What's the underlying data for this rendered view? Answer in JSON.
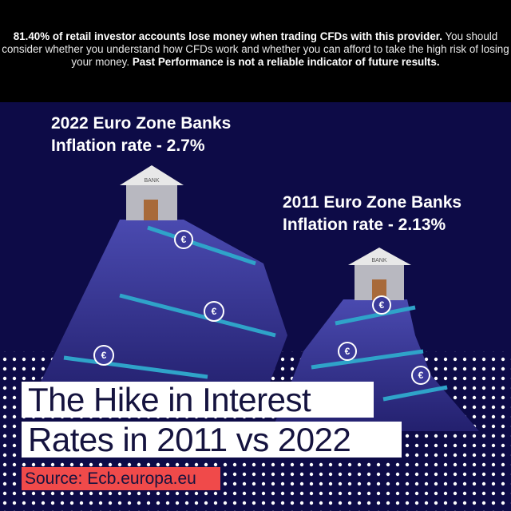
{
  "disclaimer": {
    "bold_1": "81.40% of retail investor accounts lose money when trading CFDs with this provider.",
    "normal": " You should consider whether you understand how CFDs work and whether you can afford to take the high risk of losing your money. ",
    "bold_2": "Past Performance is not a reliable indicator of future results."
  },
  "labels": {
    "y2022_line1": "2022 Euro Zone Banks",
    "y2022_line2": "Inflation rate - 2.7%",
    "y2011_line1": "2011 Euro Zone Banks",
    "y2011_line2": "Inflation rate - 2.13%"
  },
  "bank_sign": "BANK",
  "title": {
    "line1": "The Hike in Interest",
    "line2": "Rates in 2011 vs 2022"
  },
  "source": "Source: Ecb.europa.eu",
  "colors": {
    "background": "#0d0b47",
    "accent_teal": "#2fa3c9",
    "source_bg": "#f04a4a",
    "mountain": "#3b3a9a"
  }
}
